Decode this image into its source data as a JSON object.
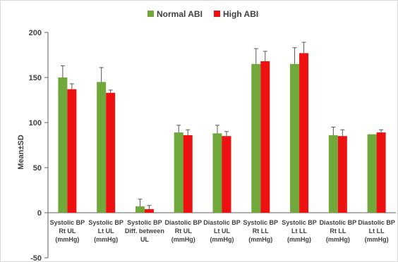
{
  "chart_data": {
    "type": "bar",
    "ylabel": "Mean±SD",
    "ylim": [
      -50,
      200
    ],
    "yticks": [
      "-50",
      "0",
      "50",
      "100",
      "150",
      "200"
    ],
    "legend_position": "top-center",
    "categories": [
      [
        "Systolic BP",
        "Rt UL",
        "(mmHg)"
      ],
      [
        "Systolic BP",
        "Lt UL",
        "(mmHg)"
      ],
      [
        "Systolic BP",
        "Diff. between",
        "UL"
      ],
      [
        "Diastolic BP",
        "Rt UL",
        "(mmHg)"
      ],
      [
        "Diastolic BP",
        "Lt UL",
        "(mmHg)"
      ],
      [
        "Systolic BP",
        "Rt LL",
        "(mmHg)"
      ],
      [
        "Systolic BP",
        "Lt LL",
        "(mmHg)"
      ],
      [
        "Diastolic BP",
        "Rt LL",
        "(mmHg)"
      ],
      [
        "Diastolic BP",
        "Lt LL",
        "(mmHg)"
      ]
    ],
    "series": [
      {
        "name": "Normal ABI",
        "color": "#70a83c",
        "values": [
          150,
          145,
          7,
          89,
          88,
          165,
          165,
          86,
          87
        ],
        "errors": [
          13,
          16,
          8,
          8,
          9,
          17,
          18,
          9,
          0
        ]
      },
      {
        "name": "High ABI",
        "color": "#ee1111",
        "values": [
          137,
          133,
          4,
          86,
          85,
          168,
          177,
          85,
          89
        ],
        "errors": [
          6,
          3,
          4,
          6,
          5,
          11,
          12,
          7,
          3
        ]
      }
    ],
    "grid": false
  }
}
